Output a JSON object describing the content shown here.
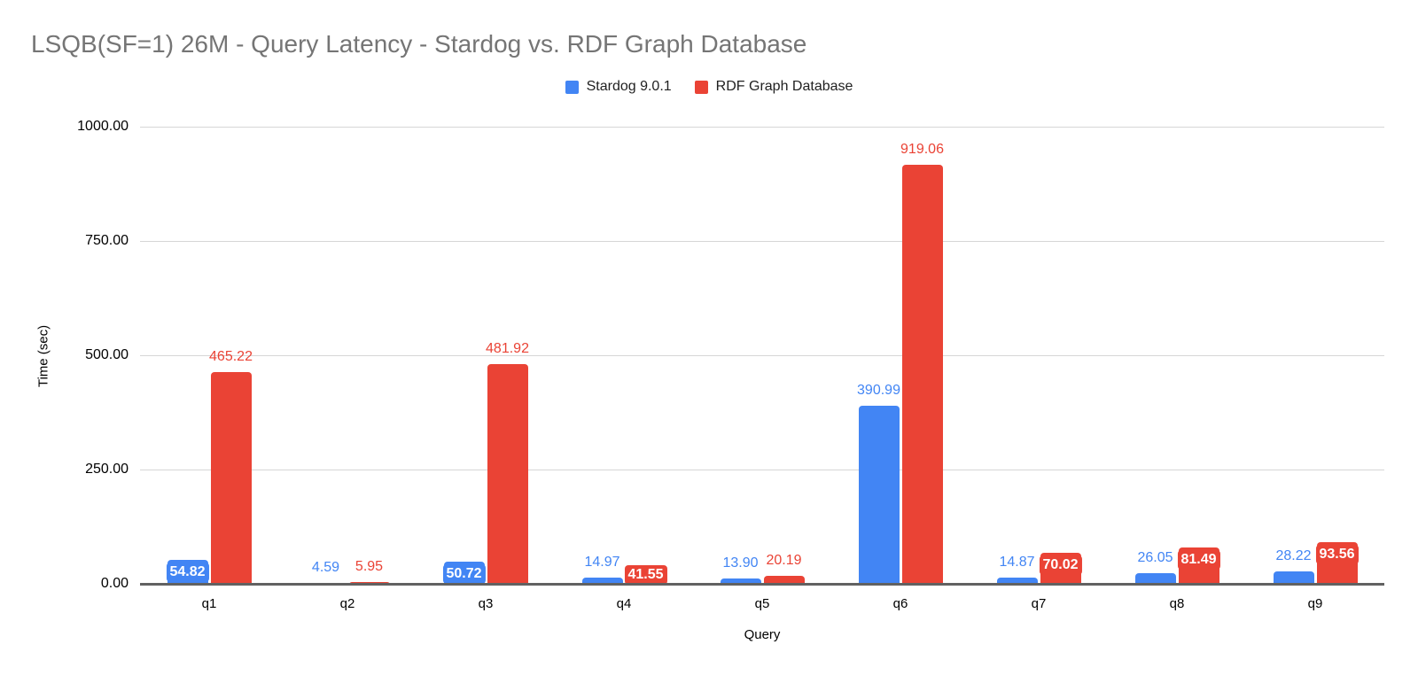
{
  "title": "LSQB(SF=1) 26M - Query Latency - Stardog vs. RDF Graph Database",
  "legend": [
    {
      "label": "Stardog 9.0.1",
      "color": "#4285F4"
    },
    {
      "label": "RDF Graph Database",
      "color": "#EA4335"
    }
  ],
  "chart_data": {
    "type": "bar",
    "title": "LSQB(SF=1) 26M - Query Latency - Stardog vs. RDF Graph Database",
    "categories": [
      "q1",
      "q2",
      "q3",
      "q4",
      "q5",
      "q6",
      "q7",
      "q8",
      "q9"
    ],
    "series": [
      {
        "name": "Stardog 9.0.1",
        "color": "#4285F4",
        "values": [
          54.82,
          4.59,
          50.72,
          14.97,
          13.9,
          390.99,
          14.87,
          26.05,
          28.22
        ],
        "label_placements": [
          "inside",
          "outside",
          "inside",
          "outside",
          "outside",
          "outside",
          "outside",
          "outside",
          "outside"
        ]
      },
      {
        "name": "RDF Graph Database",
        "color": "#EA4335",
        "values": [
          465.22,
          5.95,
          481.92,
          41.55,
          20.19,
          919.06,
          70.02,
          81.49,
          93.56
        ],
        "label_placements": [
          "outside",
          "outside",
          "outside",
          "inside",
          "outside",
          "outside",
          "inside",
          "inside",
          "inside"
        ]
      }
    ],
    "xlabel": "Query",
    "ylabel": "Time (sec)",
    "ylim": [
      0,
      1000
    ],
    "yticks": [
      "0.00",
      "250.00",
      "500.00",
      "750.00",
      "1000.00"
    ],
    "grid": true,
    "legend_position": "top",
    "colors": {
      "title_text": "#757575",
      "gridline": "#d6d6d6",
      "axis_line": "#616161",
      "tick_text": "#000000"
    }
  }
}
